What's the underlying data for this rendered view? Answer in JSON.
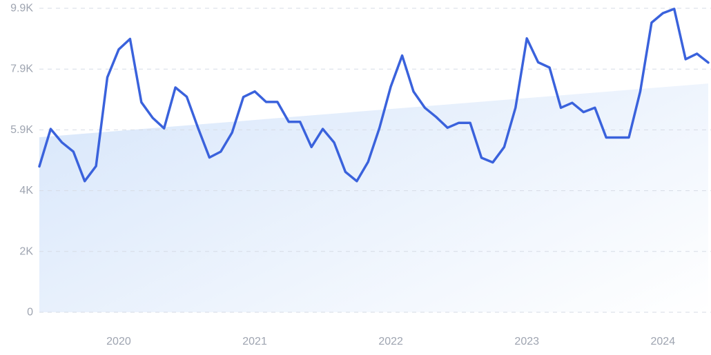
{
  "chart_data": {
    "type": "line",
    "x_labels": [
      "2020",
      "2021",
      "2022",
      "2023",
      "2024"
    ],
    "y_ticks": [
      {
        "value": 0,
        "label": "0"
      },
      {
        "value": 1980,
        "label": "2K"
      },
      {
        "value": 3960,
        "label": "4K"
      },
      {
        "value": 5940,
        "label": "5.9K"
      },
      {
        "value": 7920,
        "label": "7.9K"
      },
      {
        "value": 9900,
        "label": "9.9K"
      }
    ],
    "ylim": [
      0,
      9900
    ],
    "x_range": [
      "2019-09",
      "2024-08"
    ],
    "grid": true,
    "series": [
      {
        "color": "#3a62dc",
        "points": [
          [
            "2019-09",
            4750
          ],
          [
            "2019-10",
            5970
          ],
          [
            "2019-11",
            5530
          ],
          [
            "2019-12",
            5230
          ],
          [
            "2020-01",
            4270
          ],
          [
            "2020-02",
            4760
          ],
          [
            "2020-03",
            7650
          ],
          [
            "2020-04",
            8560
          ],
          [
            "2020-05",
            8900
          ],
          [
            "2020-06",
            6840
          ],
          [
            "2020-07",
            6330
          ],
          [
            "2020-08",
            5990
          ],
          [
            "2020-09",
            7320
          ],
          [
            "2020-10",
            7020
          ],
          [
            "2020-11",
            6000
          ],
          [
            "2020-12",
            5040
          ],
          [
            "2021-01",
            5230
          ],
          [
            "2021-02",
            5850
          ],
          [
            "2021-03",
            7010
          ],
          [
            "2021-04",
            7190
          ],
          [
            "2021-05",
            6850
          ],
          [
            "2021-06",
            6850
          ],
          [
            "2021-07",
            6200
          ],
          [
            "2021-08",
            6200
          ],
          [
            "2021-09",
            5380
          ],
          [
            "2021-10",
            5970
          ],
          [
            "2021-11",
            5530
          ],
          [
            "2021-12",
            4570
          ],
          [
            "2022-01",
            4270
          ],
          [
            "2022-02",
            4900
          ],
          [
            "2022-03",
            6000
          ],
          [
            "2022-04",
            7350
          ],
          [
            "2022-05",
            8360
          ],
          [
            "2022-06",
            7190
          ],
          [
            "2022-07",
            6660
          ],
          [
            "2022-08",
            6360
          ],
          [
            "2022-09",
            6010
          ],
          [
            "2022-10",
            6170
          ],
          [
            "2022-11",
            6170
          ],
          [
            "2022-12",
            5030
          ],
          [
            "2023-01",
            4880
          ],
          [
            "2023-02",
            5380
          ],
          [
            "2023-03",
            6660
          ],
          [
            "2023-04",
            8920
          ],
          [
            "2023-05",
            8140
          ],
          [
            "2023-06",
            7970
          ],
          [
            "2023-07",
            6660
          ],
          [
            "2023-08",
            6820
          ],
          [
            "2023-09",
            6520
          ],
          [
            "2023-10",
            6660
          ],
          [
            "2023-11",
            5690
          ],
          [
            "2023-12",
            5690
          ],
          [
            "2024-01",
            5690
          ],
          [
            "2024-02",
            7190
          ],
          [
            "2024-03",
            9430
          ],
          [
            "2024-04",
            9740
          ],
          [
            "2024-05",
            9880
          ],
          [
            "2024-06",
            8240
          ],
          [
            "2024-07",
            8420
          ],
          [
            "2024-08",
            8130
          ]
        ]
      }
    ],
    "trend": {
      "start": [
        "2019-09",
        5700
      ],
      "end": [
        "2024-08",
        7450
      ]
    }
  }
}
